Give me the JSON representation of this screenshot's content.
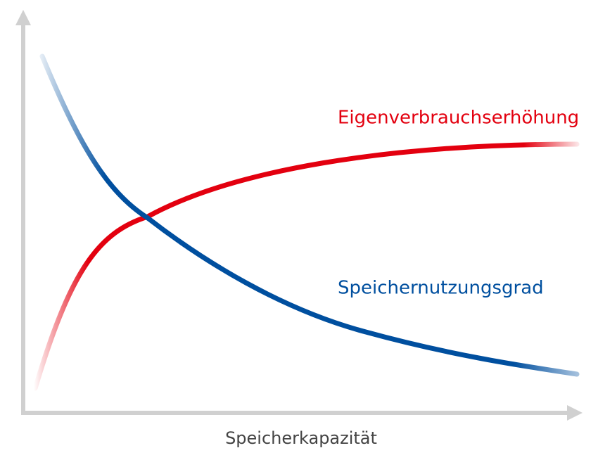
{
  "x_axis_label": "Speicherkapazität",
  "curves": [
    {
      "label": "Eigenverbrauchserhöhung"
    },
    {
      "label": "Speichernutzungsgrad"
    }
  ]
}
